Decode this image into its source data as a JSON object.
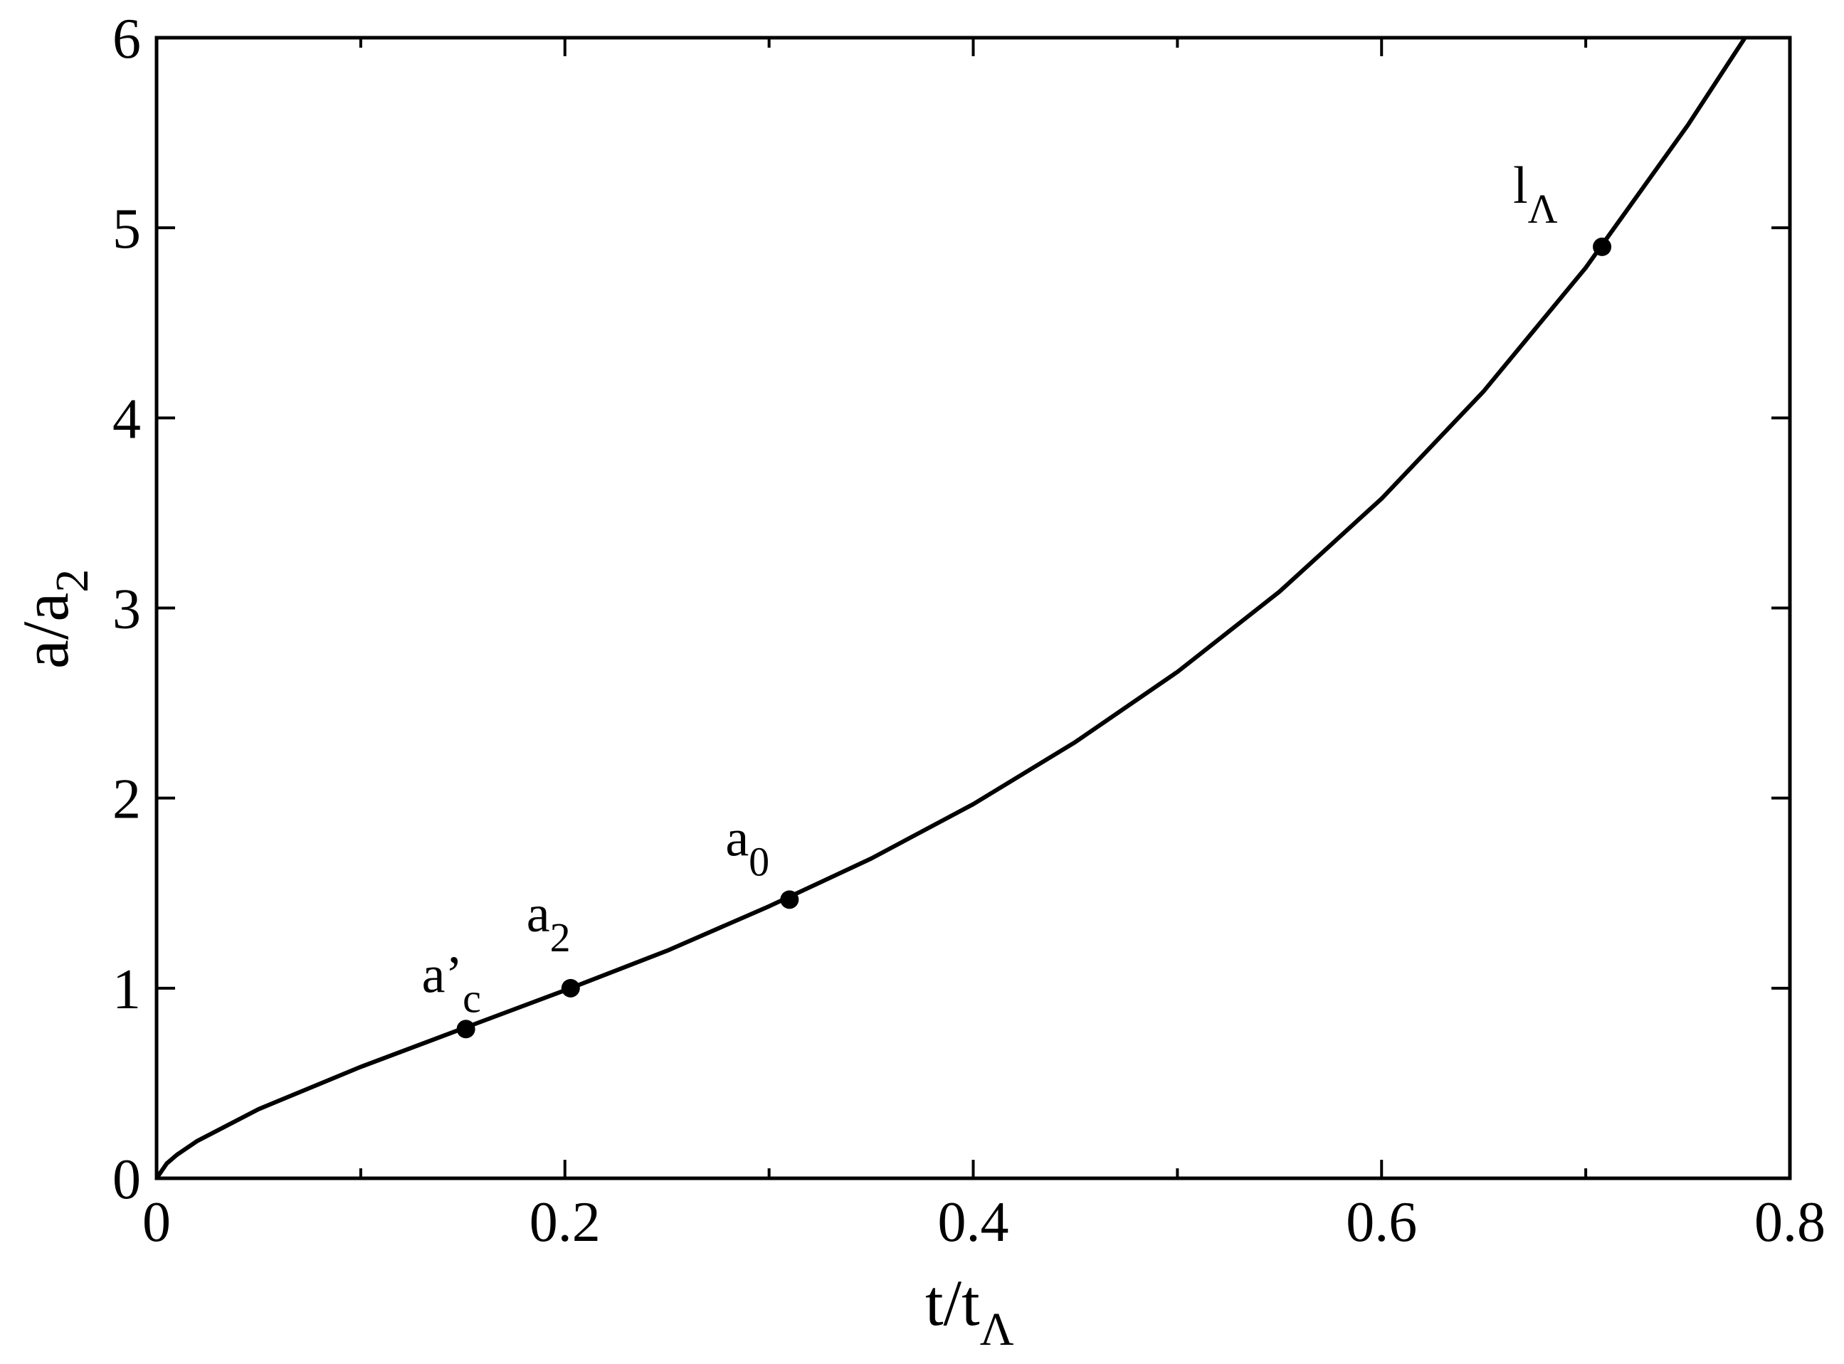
{
  "chart_data": {
    "type": "line",
    "xlabel": {
      "text": "t/t",
      "sub": "Λ"
    },
    "ylabel": {
      "text": "a/a",
      "sub": "2"
    },
    "x": [
      0,
      0.005,
      0.01,
      0.02,
      0.05,
      0.1,
      0.15,
      0.2,
      0.25,
      0.3,
      0.35,
      0.4,
      0.45,
      0.5,
      0.55,
      0.6,
      0.65,
      0.7,
      0.75,
      0.778
    ],
    "series": [
      {
        "color": "#000000",
        "values": [
          0,
          0.078,
          0.124,
          0.197,
          0.364,
          0.586,
          0.788,
          0.989,
          1.197,
          1.431,
          1.682,
          1.968,
          2.295,
          2.664,
          3.086,
          3.575,
          4.14,
          4.79,
          5.54,
          6.0
        ]
      }
    ],
    "points": {
      "x": [
        0.1515,
        0.2028,
        0.31,
        0.708
      ],
      "values": [
        0.785,
        1.0,
        1.466,
        4.9
      ],
      "labels": [
        {
          "text": "a’",
          "sub": "c"
        },
        {
          "text": "a",
          "sub": "2"
        },
        {
          "text": "a",
          "sub": "0"
        },
        {
          "text": "l",
          "sub": "Λ"
        }
      ]
    },
    "xlim": [
      0,
      0.8
    ],
    "xticks": [
      0,
      0.2,
      0.4,
      0.6,
      0.8
    ],
    "xminorticks": [
      0.1,
      0.3,
      0.5,
      0.7
    ],
    "ylim": [
      0,
      6
    ],
    "yticks": [
      0,
      1,
      2,
      3,
      4,
      5,
      6
    ]
  }
}
